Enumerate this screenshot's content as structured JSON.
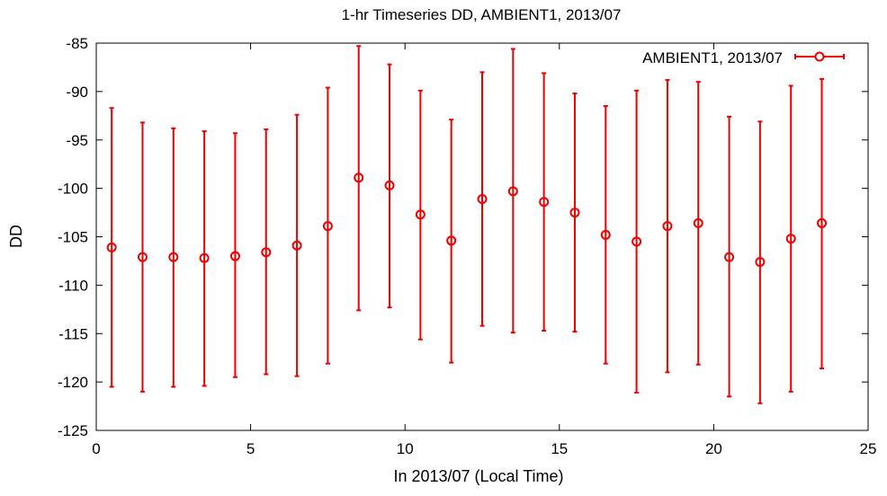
{
  "chart_data": {
    "type": "scatter",
    "title": "1-hr Timeseries DD, AMBIENT1, 2013/07",
    "xlabel": "In 2013/07 (Local Time)",
    "ylabel": "DD",
    "xlim": [
      0,
      25
    ],
    "ylim": [
      -125,
      -85
    ],
    "x_ticks": [
      "0",
      "5",
      "10",
      "15",
      "20",
      "25"
    ],
    "y_ticks": [
      "-85",
      "-90",
      "-95",
      "-100",
      "-105",
      "-110",
      "-115",
      "-120",
      "-125"
    ],
    "grid": false,
    "legend_position": "top-right",
    "series": [
      {
        "name": "AMBIENT1, 2013/07",
        "color": "#ee0000",
        "marker": "circle",
        "error_bars": true,
        "points": [
          {
            "x": 0.5,
            "y": -106.1,
            "ylow": -120.5,
            "yhigh": -91.7
          },
          {
            "x": 1.5,
            "y": -107.1,
            "ylow": -121.0,
            "yhigh": -93.2
          },
          {
            "x": 2.5,
            "y": -107.1,
            "ylow": -120.5,
            "yhigh": -93.8
          },
          {
            "x": 3.5,
            "y": -107.2,
            "ylow": -120.4,
            "yhigh": -94.1
          },
          {
            "x": 4.5,
            "y": -107.0,
            "ylow": -119.5,
            "yhigh": -94.3
          },
          {
            "x": 5.5,
            "y": -106.6,
            "ylow": -119.2,
            "yhigh": -93.9
          },
          {
            "x": 6.5,
            "y": -105.9,
            "ylow": -119.4,
            "yhigh": -92.4
          },
          {
            "x": 7.5,
            "y": -103.9,
            "ylow": -118.1,
            "yhigh": -89.6
          },
          {
            "x": 8.5,
            "y": -98.9,
            "ylow": -112.6,
            "yhigh": -85.3
          },
          {
            "x": 9.5,
            "y": -99.7,
            "ylow": -112.3,
            "yhigh": -87.2
          },
          {
            "x": 10.5,
            "y": -102.7,
            "ylow": -115.6,
            "yhigh": -89.9
          },
          {
            "x": 11.5,
            "y": -105.4,
            "ylow": -118.0,
            "yhigh": -92.9
          },
          {
            "x": 12.5,
            "y": -101.1,
            "ylow": -114.2,
            "yhigh": -88.0
          },
          {
            "x": 13.5,
            "y": -100.3,
            "ylow": -114.9,
            "yhigh": -85.6
          },
          {
            "x": 14.5,
            "y": -101.4,
            "ylow": -114.7,
            "yhigh": -88.1
          },
          {
            "x": 15.5,
            "y": -102.5,
            "ylow": -114.8,
            "yhigh": -90.2
          },
          {
            "x": 16.5,
            "y": -104.8,
            "ylow": -118.1,
            "yhigh": -91.5
          },
          {
            "x": 17.5,
            "y": -105.5,
            "ylow": -121.1,
            "yhigh": -89.9
          },
          {
            "x": 18.5,
            "y": -103.9,
            "ylow": -119.0,
            "yhigh": -88.8
          },
          {
            "x": 19.5,
            "y": -103.6,
            "ylow": -118.2,
            "yhigh": -89.0
          },
          {
            "x": 20.5,
            "y": -107.1,
            "ylow": -121.5,
            "yhigh": -92.6
          },
          {
            "x": 21.5,
            "y": -107.6,
            "ylow": -122.2,
            "yhigh": -93.1
          },
          {
            "x": 22.5,
            "y": -105.2,
            "ylow": -121.0,
            "yhigh": -89.4
          },
          {
            "x": 23.5,
            "y": -103.6,
            "ylow": -118.6,
            "yhigh": -88.7
          }
        ]
      }
    ]
  }
}
